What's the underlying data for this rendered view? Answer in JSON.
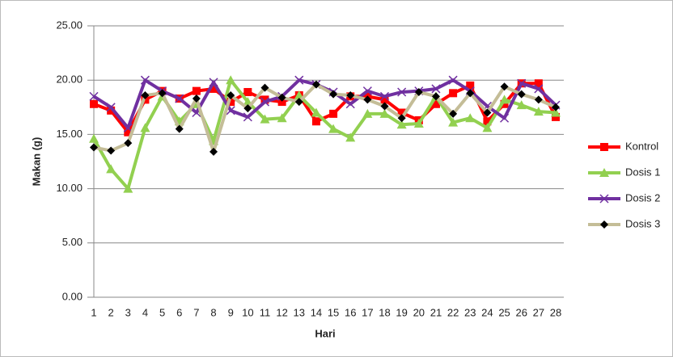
{
  "chart_data": {
    "type": "line",
    "x_label": "Hari",
    "y_label": "Makan (g)",
    "categories": [
      "1",
      "2",
      "3",
      "4",
      "5",
      "6",
      "7",
      "8",
      "9",
      "10",
      "11",
      "12",
      "13",
      "14",
      "15",
      "16",
      "17",
      "18",
      "19",
      "20",
      "21",
      "22",
      "23",
      "24",
      "25",
      "26",
      "27",
      "28"
    ],
    "series": [
      {
        "name": "Kontrol",
        "color": "#ff0000",
        "marker": "square",
        "marker_color": "#ff0000",
        "values": [
          17.8,
          17.2,
          15.2,
          18.2,
          19.0,
          18.3,
          19.0,
          19.2,
          18.0,
          18.9,
          18.2,
          18.0,
          18.6,
          16.2,
          16.9,
          18.5,
          18.5,
          18.2,
          17.0,
          16.3,
          17.8,
          18.8,
          19.5,
          16.2,
          17.8,
          19.7,
          19.7,
          16.6
        ]
      },
      {
        "name": "Dosis 1",
        "color": "#92d050",
        "marker": "triangle",
        "marker_color": "#92d050",
        "values": [
          14.6,
          11.8,
          10.0,
          15.6,
          18.5,
          16.2,
          17.8,
          14.4,
          20.0,
          18.0,
          16.4,
          16.5,
          18.6,
          17.0,
          15.5,
          14.7,
          16.9,
          16.9,
          15.9,
          16.0,
          18.5,
          16.1,
          16.5,
          15.6,
          18.2,
          17.7,
          17.1,
          17.0
        ]
      },
      {
        "name": "Dosis 2",
        "color": "#7030a0",
        "marker": "x",
        "marker_color": "#7030a0",
        "values": [
          18.5,
          17.5,
          15.6,
          20.0,
          19.0,
          18.3,
          17.0,
          19.8,
          17.2,
          16.6,
          18.0,
          18.5,
          20.0,
          19.6,
          18.9,
          17.8,
          19.0,
          18.5,
          18.9,
          19.0,
          19.2,
          20.0,
          19.0,
          17.6,
          16.5,
          19.7,
          19.2,
          17.7
        ]
      },
      {
        "name": "Dosis 3",
        "color": "#c4bd97",
        "marker": "diamond",
        "marker_color": "#000000",
        "values": [
          13.8,
          13.5,
          14.2,
          18.6,
          18.8,
          15.5,
          18.3,
          13.4,
          18.6,
          17.4,
          19.3,
          18.4,
          18.0,
          19.6,
          18.7,
          18.6,
          18.2,
          17.6,
          16.5,
          18.9,
          18.5,
          16.9,
          18.8,
          17.0,
          19.4,
          18.7,
          18.2,
          17.5
        ]
      }
    ],
    "ylim": [
      0,
      25
    ],
    "yticks": [
      {
        "value": 0,
        "label": "0.00"
      },
      {
        "value": 5,
        "label": "5.00"
      },
      {
        "value": 10,
        "label": "10.00"
      },
      {
        "value": 15,
        "label": "15.00"
      },
      {
        "value": 20,
        "label": "20.00"
      },
      {
        "value": 25,
        "label": "25.00"
      }
    ],
    "grid": true,
    "legend": "right"
  }
}
